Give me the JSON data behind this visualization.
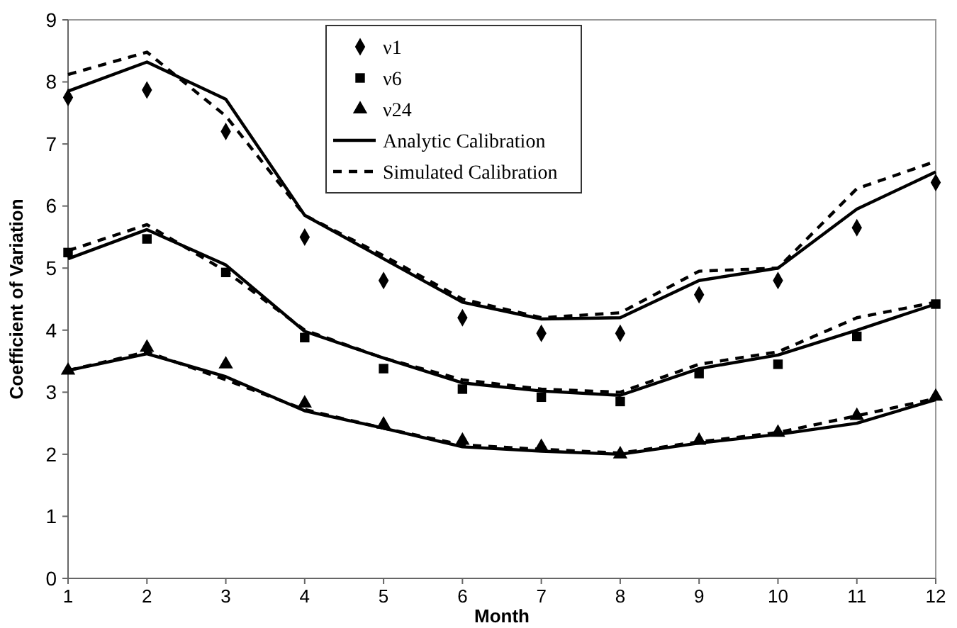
{
  "chart_data": {
    "type": "line",
    "xlabel": "Month",
    "ylabel": "Coefficient of Variation",
    "x": [
      1,
      2,
      3,
      4,
      5,
      6,
      7,
      8,
      9,
      10,
      11,
      12
    ],
    "xlim": [
      1,
      12
    ],
    "xticks": [
      1,
      2,
      3,
      4,
      5,
      6,
      7,
      8,
      9,
      10,
      11,
      12
    ],
    "ylim": [
      0,
      9
    ],
    "yticks": [
      0,
      1,
      2,
      3,
      4,
      5,
      6,
      7,
      8,
      9
    ],
    "grid": false,
    "legend": "top",
    "series": [
      {
        "name": "ν1",
        "type": "scatter",
        "marker": "diamond",
        "color": "#000000",
        "values": [
          7.75,
          7.87,
          7.2,
          5.5,
          4.8,
          4.2,
          3.95,
          3.95,
          4.57,
          4.8,
          5.65,
          6.38
        ]
      },
      {
        "name": "ν6",
        "type": "scatter",
        "marker": "square",
        "color": "#000000",
        "values": [
          5.25,
          5.47,
          4.93,
          3.88,
          3.38,
          3.05,
          2.92,
          2.85,
          3.3,
          3.45,
          3.9,
          4.42
        ]
      },
      {
        "name": "ν24",
        "type": "scatter",
        "marker": "triangle",
        "color": "#000000",
        "values": [
          3.35,
          3.72,
          3.45,
          2.82,
          2.48,
          2.22,
          2.12,
          2.0,
          2.22,
          2.35,
          2.62,
          2.93
        ]
      },
      {
        "name": "Analytic Calibration",
        "line_style": "solid",
        "color": "#000000",
        "values": [
          7.85,
          8.32,
          7.72,
          5.85,
          5.15,
          4.45,
          4.18,
          4.2,
          4.8,
          5.0,
          5.95,
          6.55
        ]
      },
      {
        "name": "Simulated Calibration",
        "line_style": "dashed",
        "color": "#000000",
        "values": [
          8.12,
          8.48,
          7.45,
          5.85,
          5.2,
          4.5,
          4.2,
          4.28,
          4.95,
          5.0,
          6.28,
          6.72
        ]
      },
      {
        "line_style": "solid",
        "color": "#000000",
        "values": [
          5.15,
          5.62,
          5.05,
          3.98,
          3.55,
          3.15,
          3.02,
          2.95,
          3.38,
          3.6,
          4.0,
          4.42
        ]
      },
      {
        "line_style": "dashed",
        "color": "#000000",
        "values": [
          5.28,
          5.7,
          4.95,
          4.0,
          3.55,
          3.2,
          3.05,
          3.0,
          3.45,
          3.65,
          4.2,
          4.45
        ]
      },
      {
        "line_style": "solid",
        "color": "#000000",
        "values": [
          3.35,
          3.62,
          3.25,
          2.7,
          2.42,
          2.12,
          2.05,
          2.0,
          2.18,
          2.32,
          2.5,
          2.88
        ]
      },
      {
        "line_style": "dashed",
        "color": "#000000",
        "values": [
          3.35,
          3.65,
          3.2,
          2.72,
          2.42,
          2.15,
          2.08,
          2.02,
          2.2,
          2.35,
          2.62,
          2.9
        ]
      }
    ]
  }
}
